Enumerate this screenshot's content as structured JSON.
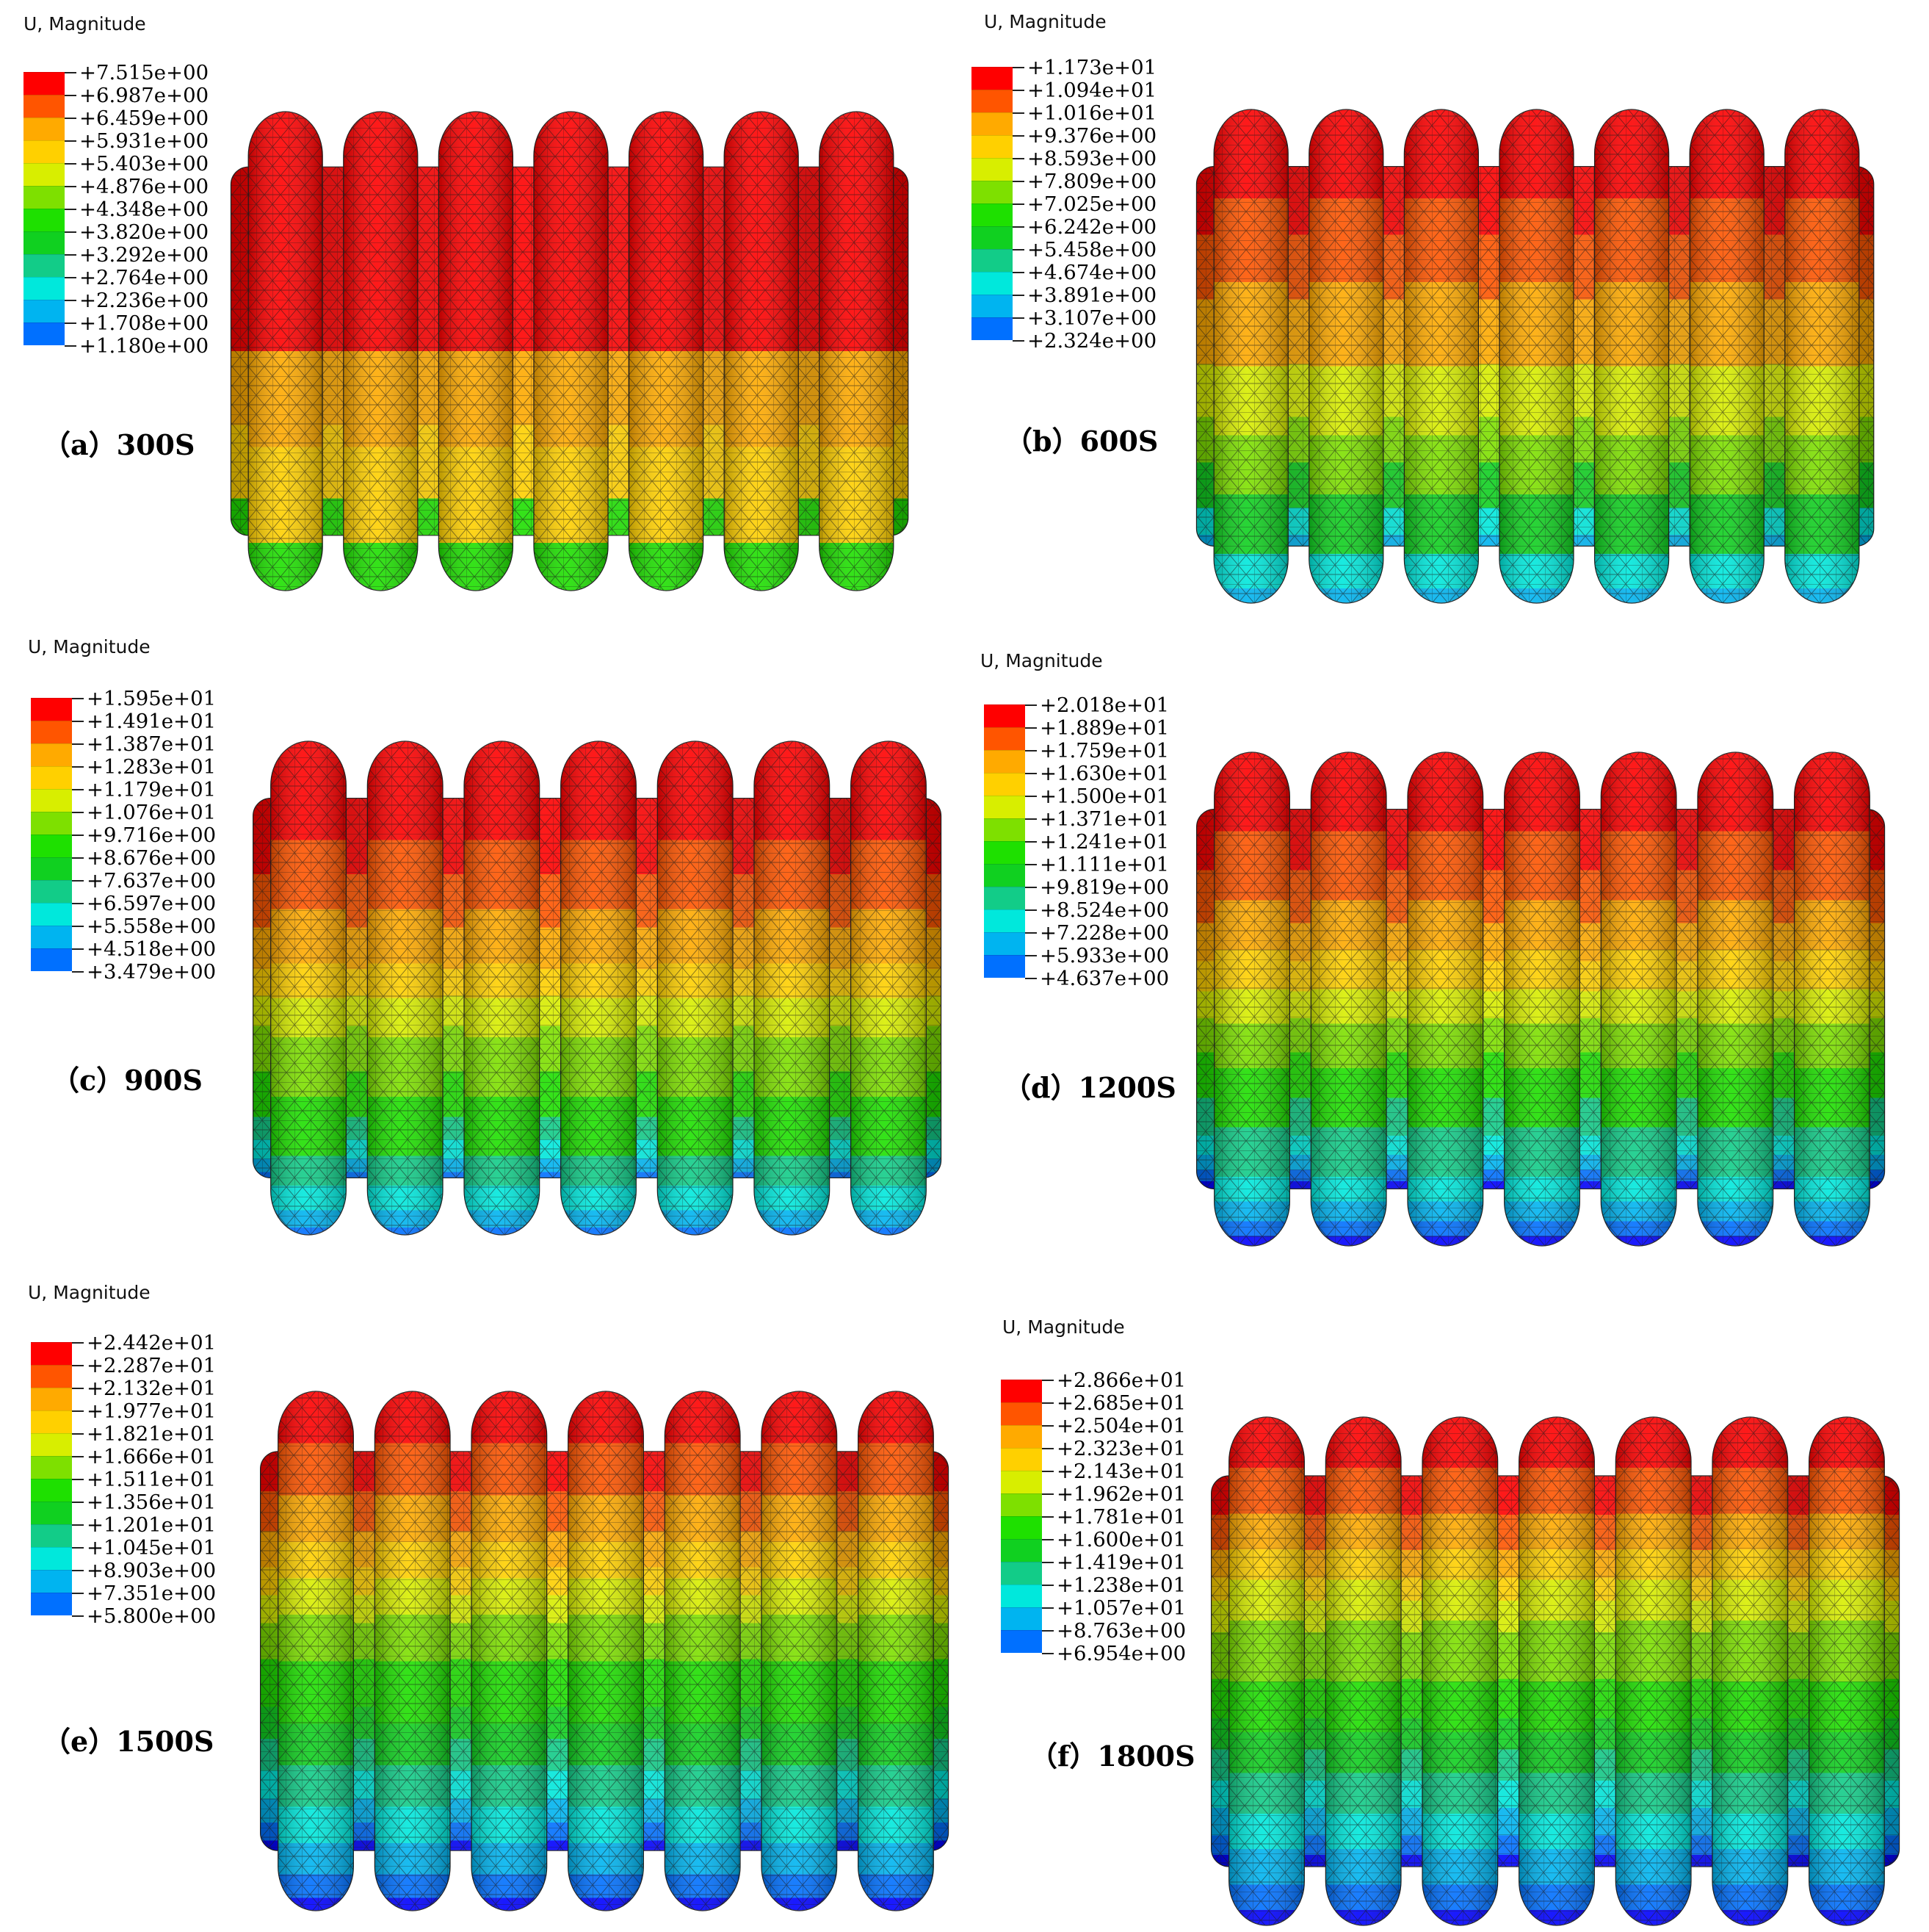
{
  "legend_title": "U, Magnitude",
  "colormap": [
    "#ff0000",
    "#ff5500",
    "#ffaa00",
    "#ffd000",
    "#d8ee00",
    "#7ee000",
    "#1ee000",
    "#10d020",
    "#12cc88",
    "#00e8dc",
    "#00b4f0",
    "#0070ff",
    "#0000ff"
  ],
  "panels": [
    {
      "id": "a",
      "caption": "（a）300S",
      "legend": [
        "+7.515e+00",
        "+6.987e+00",
        "+6.459e+00",
        "+5.931e+00",
        "+5.403e+00",
        "+4.876e+00",
        "+4.348e+00",
        "+3.820e+00",
        "+3.292e+00",
        "+2.764e+00",
        "+2.236e+00",
        "+1.708e+00",
        "+1.180e+00"
      ]
    },
    {
      "id": "b",
      "caption": "（b）600S",
      "legend": [
        "+1.173e+01",
        "+1.094e+01",
        "+1.016e+01",
        "+9.376e+00",
        "+8.593e+00",
        "+7.809e+00",
        "+7.025e+00",
        "+6.242e+00",
        "+5.458e+00",
        "+4.674e+00",
        "+3.891e+00",
        "+3.107e+00",
        "+2.324e+00"
      ]
    },
    {
      "id": "c",
      "caption": "（c）900S",
      "legend": [
        "+1.595e+01",
        "+1.491e+01",
        "+1.387e+01",
        "+1.283e+01",
        "+1.179e+01",
        "+1.076e+01",
        "+9.716e+00",
        "+8.676e+00",
        "+7.637e+00",
        "+6.597e+00",
        "+5.558e+00",
        "+4.518e+00",
        "+3.479e+00"
      ]
    },
    {
      "id": "d",
      "caption": "（d）1200S",
      "legend": [
        "+2.018e+01",
        "+1.889e+01",
        "+1.759e+01",
        "+1.630e+01",
        "+1.500e+01",
        "+1.371e+01",
        "+1.241e+01",
        "+1.111e+01",
        "+9.819e+00",
        "+8.524e+00",
        "+7.228e+00",
        "+5.933e+00",
        "+4.637e+00"
      ]
    },
    {
      "id": "e",
      "caption": "（e）1500S",
      "legend": [
        "+2.442e+01",
        "+2.287e+01",
        "+2.132e+01",
        "+1.977e+01",
        "+1.821e+01",
        "+1.666e+01",
        "+1.511e+01",
        "+1.356e+01",
        "+1.201e+01",
        "+1.045e+01",
        "+8.903e+00",
        "+7.351e+00",
        "+5.800e+00"
      ]
    },
    {
      "id": "f",
      "caption": "（f）1800S",
      "legend": [
        "+2.866e+01",
        "+2.685e+01",
        "+2.504e+01",
        "+2.323e+01",
        "+2.143e+01",
        "+1.962e+01",
        "+1.781e+01",
        "+1.600e+01",
        "+1.419e+01",
        "+1.238e+01",
        "+1.057e+01",
        "+8.763e+00",
        "+6.954e+00"
      ]
    }
  ]
}
